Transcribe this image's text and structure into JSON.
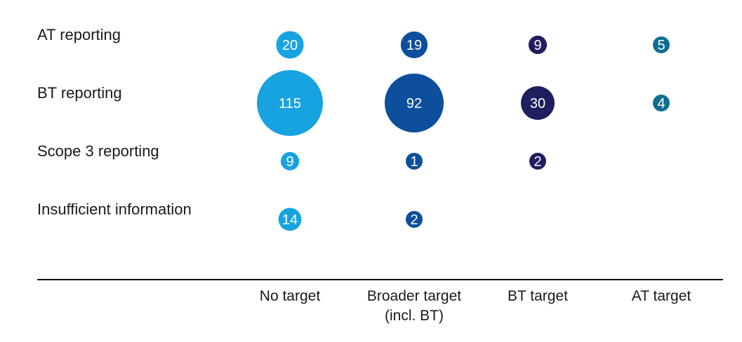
{
  "chart_data": {
    "type": "bubble",
    "title": "",
    "rows": [
      "AT reporting",
      "BT reporting",
      "Scope 3 reporting",
      "Insufficient information"
    ],
    "columns": [
      {
        "lines": [
          "No target"
        ]
      },
      {
        "lines": [
          "Broader target",
          "(incl. BT)"
        ]
      },
      {
        "lines": [
          "BT target"
        ]
      },
      {
        "lines": [
          "AT target"
        ]
      }
    ],
    "values": [
      [
        20,
        19,
        9,
        5
      ],
      [
        115,
        92,
        30,
        4
      ],
      [
        9,
        1,
        2,
        null
      ],
      [
        14,
        2,
        null,
        null
      ]
    ],
    "colors": [
      "#17a3e0",
      "#0d4f9c",
      "#1f1e5f",
      "#0f6e8f"
    ],
    "grid": false,
    "legend": "none"
  }
}
